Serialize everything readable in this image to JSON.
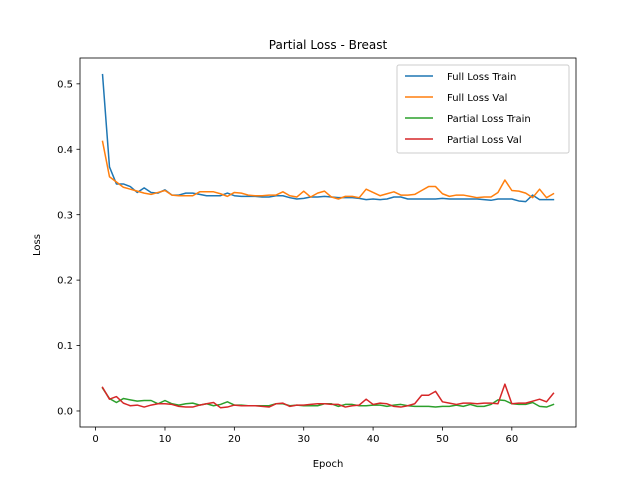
{
  "chart_data": {
    "type": "line",
    "title": "Partial Loss - Breast",
    "xlabel": "Epoch",
    "ylabel": "Loss",
    "xlim": [
      -2.25,
      69.25
    ],
    "ylim": [
      -0.0245,
      0.5395
    ],
    "xticks": [
      0,
      10,
      20,
      30,
      40,
      50,
      60
    ],
    "yticks": [
      0.0,
      0.1,
      0.2,
      0.3,
      0.4,
      0.5
    ],
    "xtick_labels": [
      "0",
      "10",
      "20",
      "30",
      "40",
      "50",
      "60"
    ],
    "ytick_labels": [
      "0.0",
      "0.1",
      "0.2",
      "0.3",
      "0.4",
      "0.5"
    ],
    "grid": false,
    "legend_position": "upper right",
    "x": [
      1,
      2,
      3,
      4,
      5,
      6,
      7,
      8,
      9,
      10,
      11,
      12,
      13,
      14,
      15,
      16,
      17,
      18,
      19,
      20,
      21,
      22,
      23,
      24,
      25,
      26,
      27,
      28,
      29,
      30,
      31,
      32,
      33,
      34,
      35,
      36,
      37,
      38,
      39,
      40,
      41,
      42,
      43,
      44,
      45,
      46,
      47,
      48,
      49,
      50,
      51,
      52,
      53,
      54,
      55,
      56,
      57,
      58,
      59,
      60,
      61,
      62,
      63,
      64,
      65,
      66
    ],
    "series": [
      {
        "name": "Full Loss Train",
        "color": "#1f77b4",
        "values": [
          0.514,
          0.373,
          0.347,
          0.347,
          0.343,
          0.334,
          0.341,
          0.334,
          0.333,
          0.338,
          0.33,
          0.33,
          0.333,
          0.333,
          0.331,
          0.329,
          0.329,
          0.329,
          0.333,
          0.329,
          0.328,
          0.328,
          0.328,
          0.327,
          0.327,
          0.329,
          0.329,
          0.326,
          0.324,
          0.325,
          0.327,
          0.327,
          0.328,
          0.327,
          0.326,
          0.326,
          0.326,
          0.325,
          0.323,
          0.324,
          0.323,
          0.324,
          0.327,
          0.327,
          0.324,
          0.324,
          0.324,
          0.324,
          0.324,
          0.325,
          0.324,
          0.324,
          0.324,
          0.324,
          0.324,
          0.323,
          0.322,
          0.324,
          0.324,
          0.324,
          0.321,
          0.32,
          0.33,
          0.323,
          0.323,
          0.323
        ]
      },
      {
        "name": "Full Loss Val",
        "color": "#ff7f0e",
        "values": [
          0.412,
          0.358,
          0.35,
          0.342,
          0.339,
          0.336,
          0.333,
          0.331,
          0.334,
          0.337,
          0.33,
          0.329,
          0.329,
          0.329,
          0.335,
          0.335,
          0.335,
          0.332,
          0.328,
          0.334,
          0.333,
          0.33,
          0.329,
          0.329,
          0.33,
          0.33,
          0.335,
          0.329,
          0.327,
          0.336,
          0.327,
          0.333,
          0.336,
          0.327,
          0.324,
          0.328,
          0.328,
          0.326,
          0.339,
          0.334,
          0.329,
          0.332,
          0.335,
          0.33,
          0.33,
          0.331,
          0.337,
          0.343,
          0.343,
          0.332,
          0.328,
          0.33,
          0.33,
          0.328,
          0.326,
          0.327,
          0.327,
          0.334,
          0.353,
          0.337,
          0.336,
          0.333,
          0.326,
          0.339,
          0.326,
          0.332
        ]
      },
      {
        "name": "Partial Loss Train",
        "color": "#2ca02c",
        "values": [
          0.035,
          0.019,
          0.013,
          0.019,
          0.017,
          0.015,
          0.016,
          0.016,
          0.011,
          0.016,
          0.011,
          0.009,
          0.011,
          0.012,
          0.009,
          0.011,
          0.008,
          0.01,
          0.014,
          0.009,
          0.009,
          0.008,
          0.008,
          0.008,
          0.008,
          0.011,
          0.011,
          0.008,
          0.009,
          0.008,
          0.008,
          0.008,
          0.011,
          0.011,
          0.007,
          0.01,
          0.01,
          0.008,
          0.008,
          0.009,
          0.009,
          0.007,
          0.009,
          0.01,
          0.008,
          0.007,
          0.007,
          0.007,
          0.006,
          0.007,
          0.007,
          0.009,
          0.007,
          0.01,
          0.007,
          0.007,
          0.01,
          0.017,
          0.016,
          0.011,
          0.01,
          0.01,
          0.013,
          0.007,
          0.006,
          0.01
        ]
      },
      {
        "name": "Partial Loss Val",
        "color": "#d62728",
        "values": [
          0.036,
          0.018,
          0.022,
          0.012,
          0.008,
          0.009,
          0.006,
          0.009,
          0.011,
          0.011,
          0.01,
          0.007,
          0.006,
          0.006,
          0.009,
          0.011,
          0.013,
          0.005,
          0.006,
          0.009,
          0.008,
          0.008,
          0.008,
          0.007,
          0.006,
          0.011,
          0.012,
          0.007,
          0.009,
          0.009,
          0.01,
          0.011,
          0.011,
          0.01,
          0.01,
          0.006,
          0.008,
          0.009,
          0.018,
          0.01,
          0.012,
          0.011,
          0.007,
          0.006,
          0.008,
          0.011,
          0.024,
          0.024,
          0.03,
          0.014,
          0.012,
          0.01,
          0.012,
          0.012,
          0.011,
          0.012,
          0.012,
          0.011,
          0.041,
          0.011,
          0.012,
          0.012,
          0.015,
          0.018,
          0.014,
          0.027
        ]
      }
    ]
  }
}
